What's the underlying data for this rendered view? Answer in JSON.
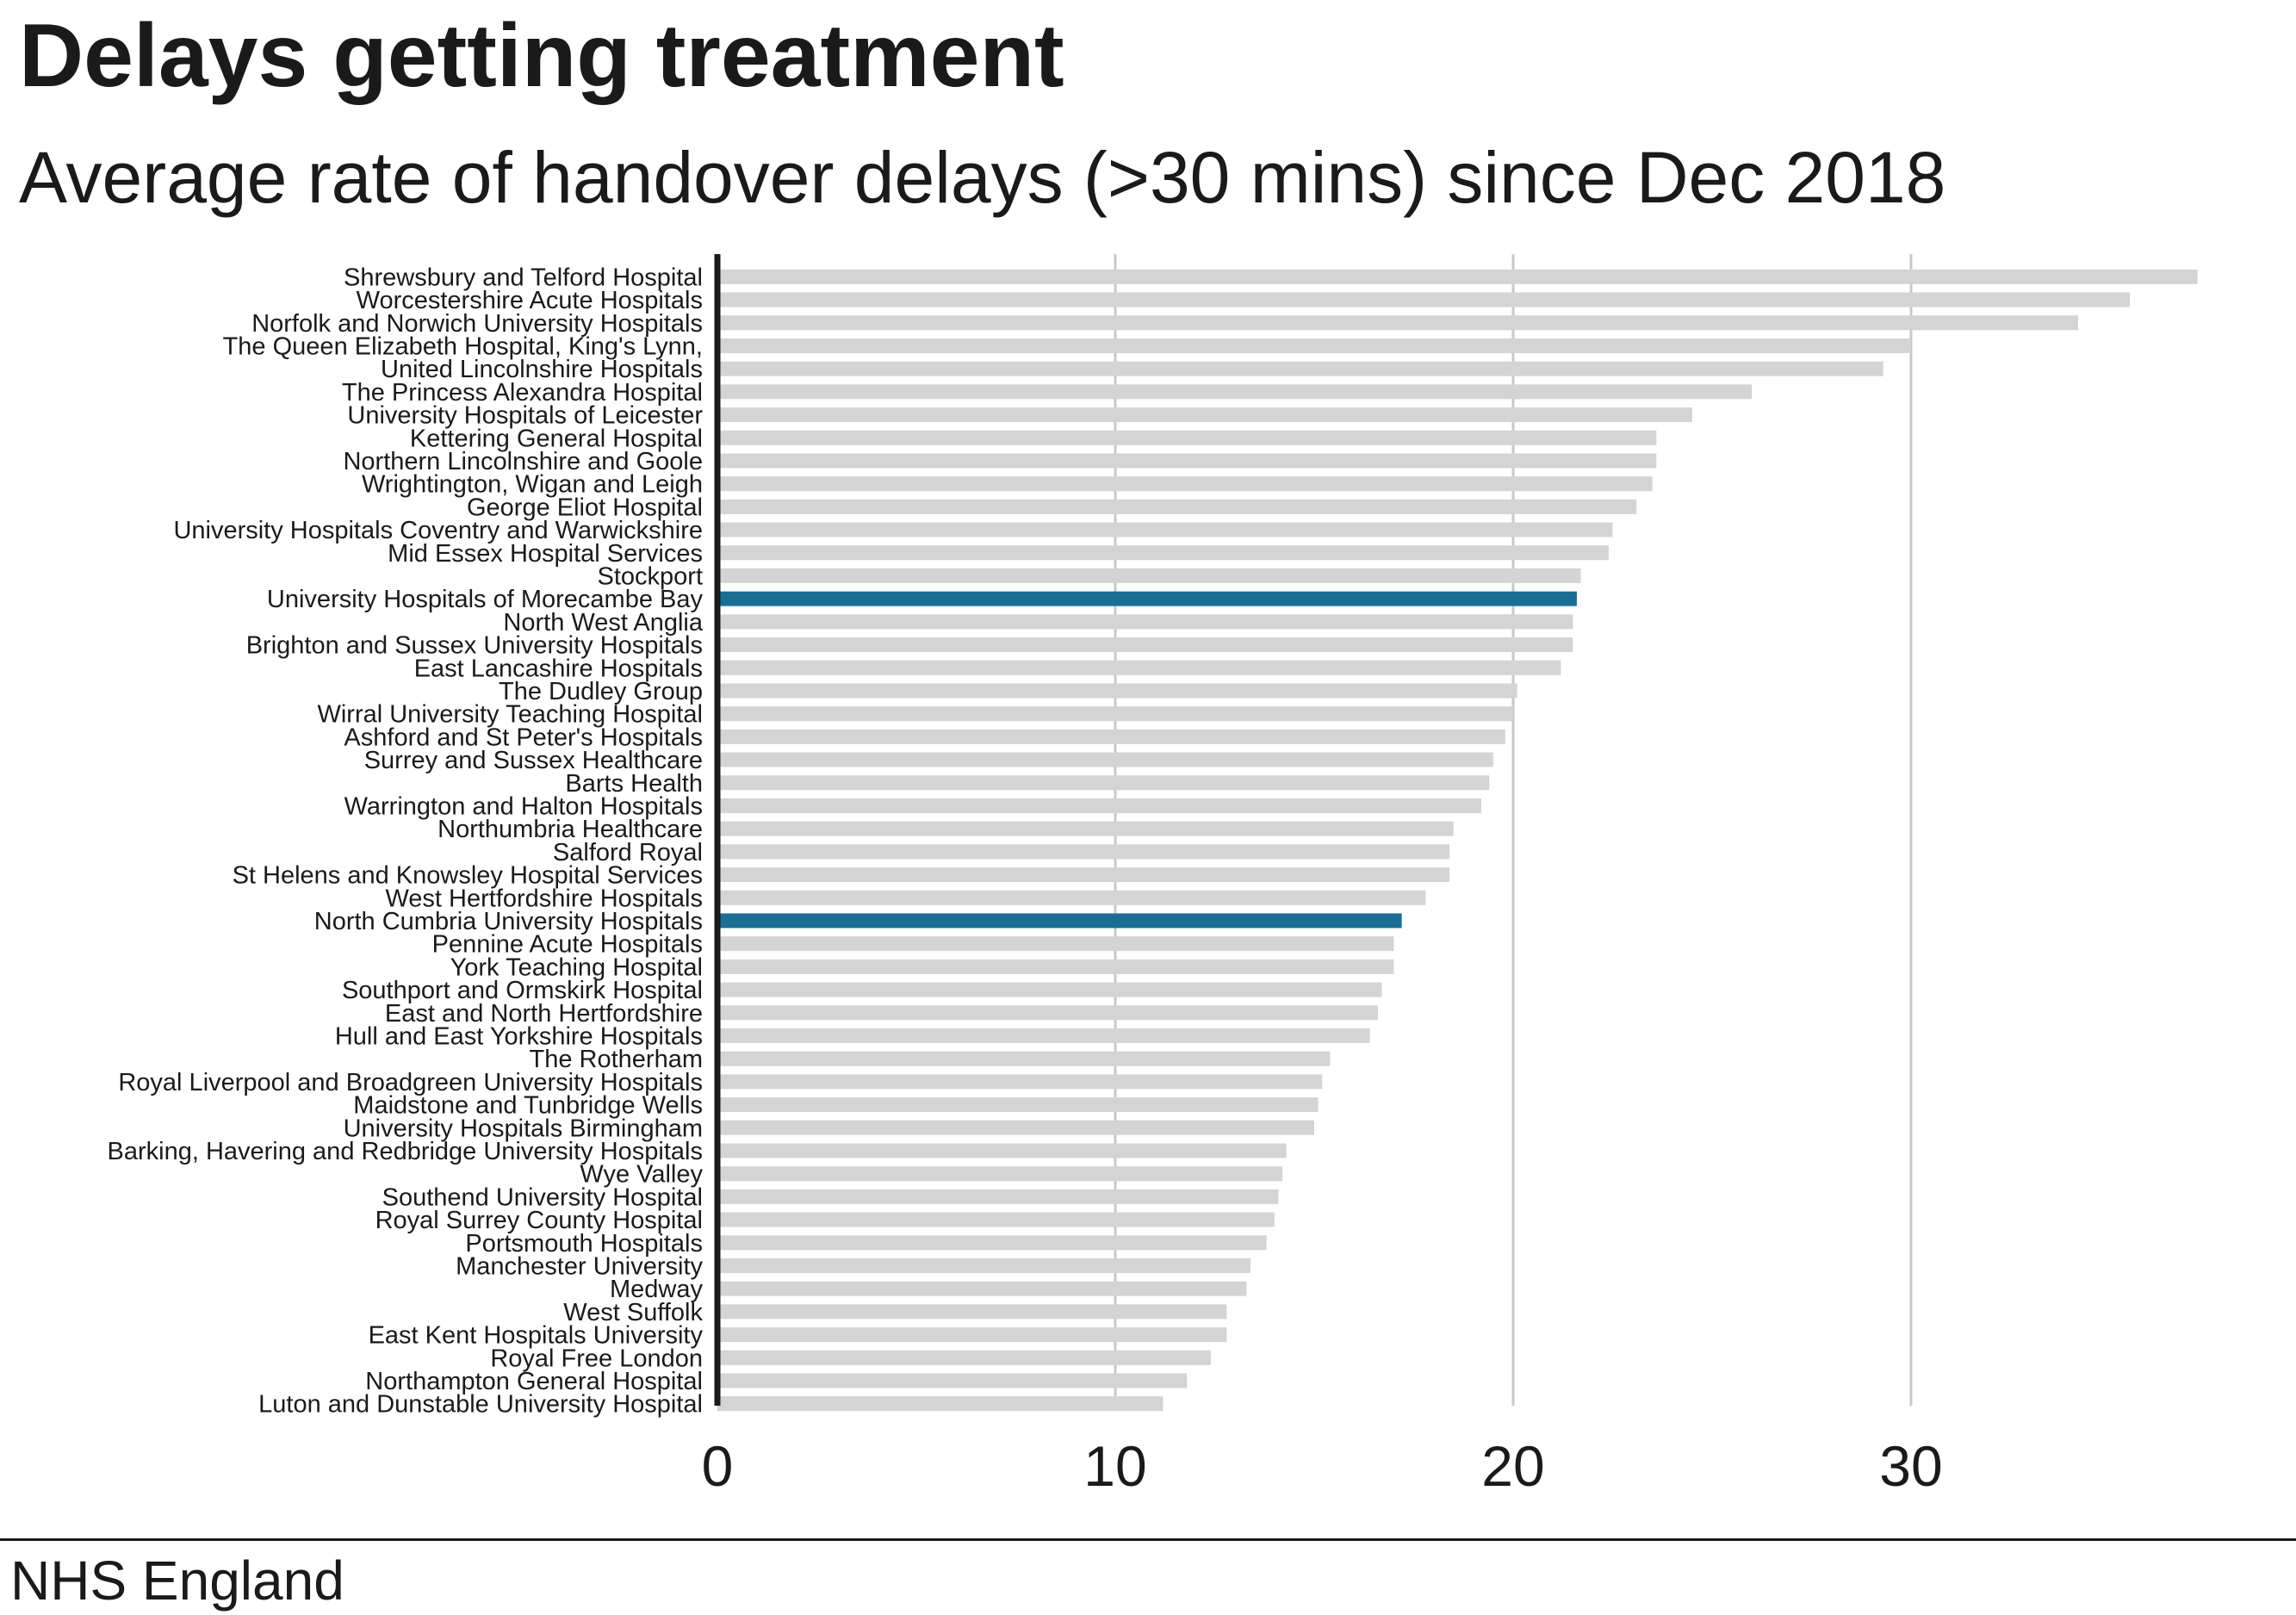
{
  "header": {
    "title": "Delays getting treatment",
    "subtitle": "Average rate of handover delays (>30 mins) since Dec 2018"
  },
  "footer": {
    "source": "NHS England"
  },
  "colors": {
    "bar": "#d4d4d4",
    "highlight": "#1a6e93",
    "grid": "#c8c8c8",
    "axis": "#1a1a1a",
    "text": "#1a1a1a"
  },
  "chart_data": {
    "type": "bar",
    "orientation": "horizontal",
    "title": "Delays getting treatment",
    "subtitle": "Average rate of handover delays (>30 mins) since Dec 2018",
    "xlim": [
      0,
      38
    ],
    "xticks": [
      0,
      10,
      20,
      30
    ],
    "grid": true,
    "highlighted": [
      "University Hospitals of Morecambe Bay",
      "North Cumbria University Hospitals"
    ],
    "categories": [
      "Shrewsbury and Telford Hospital",
      "Worcestershire Acute Hospitals",
      "Norfolk and Norwich University Hospitals",
      "The Queen Elizabeth Hospital, King's Lynn,",
      "United Lincolnshire Hospitals",
      "The Princess Alexandra Hospital",
      "University Hospitals of Leicester",
      "Kettering General Hospital",
      "Northern Lincolnshire and Goole",
      "Wrightington, Wigan and Leigh",
      "George Eliot Hospital",
      "University Hospitals Coventry and Warwickshire",
      "Mid Essex Hospital Services",
      "Stockport",
      "University Hospitals of Morecambe Bay",
      "North West Anglia",
      "Brighton and Sussex University Hospitals",
      "East Lancashire Hospitals",
      "The Dudley Group",
      "Wirral University Teaching Hospital",
      "Ashford and St Peter's Hospitals",
      "Surrey and Sussex Healthcare",
      "Barts Health",
      "Warrington and Halton Hospitals",
      "Northumbria Healthcare",
      "Salford Royal",
      "St Helens and Knowsley Hospital Services",
      "West Hertfordshire Hospitals",
      "North Cumbria University Hospitals",
      "Pennine Acute Hospitals",
      "York Teaching Hospital",
      "Southport and Ormskirk Hospital",
      "East and North Hertfordshire",
      "Hull and East Yorkshire Hospitals",
      "The Rotherham",
      "Royal Liverpool and Broadgreen University Hospitals",
      "Maidstone and Tunbridge Wells",
      "University Hospitals Birmingham",
      "Barking, Havering and Redbridge University Hospitals",
      "Wye Valley",
      "Southend University Hospital",
      "Royal Surrey County Hospital",
      "Portsmouth Hospitals",
      "Manchester University",
      "Medway",
      "West Suffolk",
      "East Kent Hospitals University",
      "Royal Free London",
      "Northampton General Hospital",
      "Luton and Dunstable University Hospital"
    ],
    "values": [
      37.2,
      35.5,
      34.2,
      30.0,
      29.3,
      26.0,
      24.5,
      23.6,
      23.6,
      23.5,
      23.1,
      22.5,
      22.4,
      21.7,
      21.6,
      21.5,
      21.5,
      21.2,
      20.1,
      20.0,
      19.8,
      19.5,
      19.4,
      19.2,
      18.5,
      18.4,
      18.4,
      17.8,
      17.2,
      17.0,
      17.0,
      16.7,
      16.6,
      16.4,
      15.4,
      15.2,
      15.1,
      15.0,
      14.3,
      14.2,
      14.1,
      14.0,
      13.8,
      13.4,
      13.3,
      12.8,
      12.8,
      12.4,
      11.8,
      11.2
    ]
  }
}
